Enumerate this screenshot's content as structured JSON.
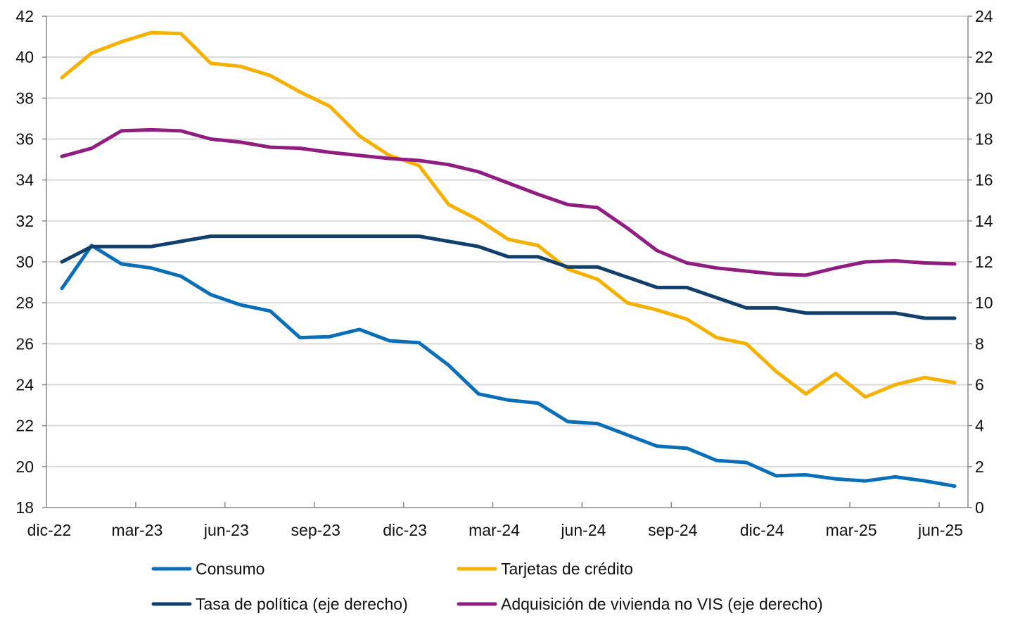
{
  "chart_data": {
    "type": "line",
    "title": "",
    "xlabel": "",
    "ylabel": "",
    "ylim_left": [
      18,
      42
    ],
    "ylim_right": [
      0,
      24
    ],
    "left_ticks": [
      18,
      20,
      22,
      24,
      26,
      28,
      30,
      32,
      34,
      36,
      38,
      40,
      42
    ],
    "right_ticks": [
      0,
      2,
      4,
      6,
      8,
      10,
      12,
      14,
      16,
      18,
      20,
      22,
      24
    ],
    "x_tick_labels": [
      "dic-22",
      "mar-23",
      "jun-23",
      "sep-23",
      "dic-23",
      "mar-24",
      "jun-24",
      "sep-24",
      "dic-24",
      "mar-25",
      "jun-25"
    ],
    "x": [
      "dic-22",
      "ene-23",
      "feb-23",
      "mar-23",
      "abr-23",
      "may-23",
      "jun-23",
      "jul-23",
      "ago-23",
      "sep-23",
      "oct-23",
      "nov-23",
      "dic-23",
      "ene-24",
      "feb-24",
      "mar-24",
      "abr-24",
      "may-24",
      "jun-24",
      "jul-24",
      "ago-24",
      "sep-24",
      "oct-24",
      "nov-24",
      "dic-24",
      "ene-25",
      "feb-25",
      "mar-25",
      "abr-25",
      "may-25",
      "jun-25"
    ],
    "grid": true,
    "legend_position": "bottom",
    "series": [
      {
        "name": "Consumo",
        "axis": "left",
        "color": "#0b6fb8",
        "values": [
          28.7,
          30.8,
          29.9,
          29.7,
          29.3,
          28.4,
          27.9,
          27.6,
          26.3,
          26.35,
          26.7,
          26.15,
          26.05,
          24.95,
          23.55,
          23.25,
          23.1,
          22.2,
          22.1,
          21.55,
          21.0,
          20.9,
          20.3,
          20.2,
          19.55,
          19.6,
          19.4,
          19.3,
          19.5,
          19.3,
          19.05
        ]
      },
      {
        "name": "Tarjetas de crédito",
        "axis": "left",
        "color": "#f6b000",
        "values": [
          39.0,
          40.2,
          40.75,
          41.2,
          41.15,
          39.7,
          39.55,
          39.1,
          38.3,
          37.6,
          36.15,
          35.2,
          34.7,
          32.8,
          32.05,
          31.1,
          30.8,
          29.65,
          29.15,
          28.0,
          27.65,
          27.2,
          26.3,
          26.0,
          24.65,
          23.55,
          24.55,
          23.4,
          24.0,
          24.35,
          24.1
        ]
      },
      {
        "name": "Tasa de política (eje derecho)",
        "axis": "right",
        "color": "#123f6c",
        "values": [
          12.0,
          12.75,
          12.75,
          12.75,
          13.0,
          13.25,
          13.25,
          13.25,
          13.25,
          13.25,
          13.25,
          13.25,
          13.25,
          13.0,
          12.75,
          12.25,
          12.25,
          11.75,
          11.75,
          11.25,
          10.75,
          10.75,
          10.25,
          9.75,
          9.75,
          9.5,
          9.5,
          9.5,
          9.5,
          9.25,
          9.25
        ]
      },
      {
        "name": "Adquisición de vivienda no VIS (eje derecho)",
        "axis": "right",
        "color": "#8f1e80",
        "values": [
          17.15,
          17.55,
          18.4,
          18.45,
          18.4,
          18.0,
          17.85,
          17.6,
          17.55,
          17.35,
          17.2,
          17.05,
          16.95,
          16.75,
          16.4,
          15.85,
          15.3,
          14.8,
          14.65,
          13.65,
          12.55,
          11.95,
          11.7,
          11.55,
          11.4,
          11.35,
          11.7,
          12.0,
          12.05,
          11.95,
          11.9
        ]
      }
    ]
  }
}
